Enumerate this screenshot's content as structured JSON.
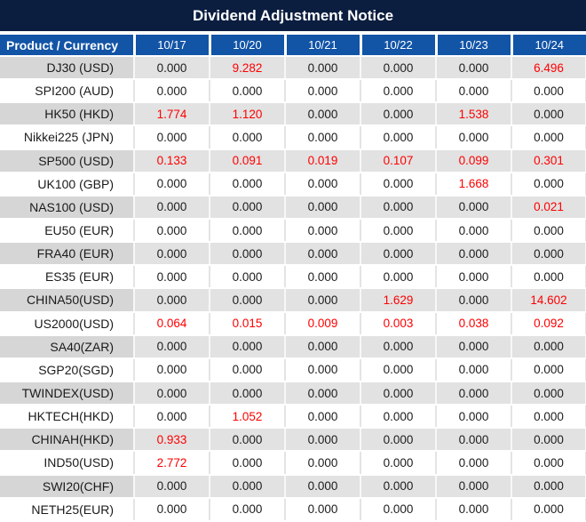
{
  "title": "Dividend Adjustment Notice",
  "colors": {
    "title_bg": "#0b1e40",
    "header_bg": "#1254a6",
    "gray_row_bg": "#e2e2e2",
    "gray_label_bg": "#d6d6d6",
    "highlight_red": "#fe0000",
    "text": "#1c1c1c"
  },
  "table": {
    "header": {
      "product_label": "Product / Currency",
      "dates": [
        "10/17",
        "10/20",
        "10/21",
        "10/22",
        "10/23",
        "10/24"
      ]
    },
    "rows": [
      {
        "product": "DJ30 (USD)",
        "values": [
          "0.000",
          "9.282",
          "0.000",
          "0.000",
          "0.000",
          "6.496"
        ]
      },
      {
        "product": "SPI200 (AUD)",
        "values": [
          "0.000",
          "0.000",
          "0.000",
          "0.000",
          "0.000",
          "0.000"
        ]
      },
      {
        "product": "HK50 (HKD)",
        "values": [
          "1.774",
          "1.120",
          "0.000",
          "0.000",
          "1.538",
          "0.000"
        ]
      },
      {
        "product": "Nikkei225 (JPN)",
        "values": [
          "0.000",
          "0.000",
          "0.000",
          "0.000",
          "0.000",
          "0.000"
        ]
      },
      {
        "product": "SP500 (USD)",
        "values": [
          "0.133",
          "0.091",
          "0.019",
          "0.107",
          "0.099",
          "0.301"
        ]
      },
      {
        "product": "UK100 (GBP)",
        "values": [
          "0.000",
          "0.000",
          "0.000",
          "0.000",
          "1.668",
          "0.000"
        ]
      },
      {
        "product": "NAS100 (USD)",
        "values": [
          "0.000",
          "0.000",
          "0.000",
          "0.000",
          "0.000",
          "0.021"
        ]
      },
      {
        "product": "EU50 (EUR)",
        "values": [
          "0.000",
          "0.000",
          "0.000",
          "0.000",
          "0.000",
          "0.000"
        ]
      },
      {
        "product": "FRA40 (EUR)",
        "values": [
          "0.000",
          "0.000",
          "0.000",
          "0.000",
          "0.000",
          "0.000"
        ]
      },
      {
        "product": "ES35 (EUR)",
        "values": [
          "0.000",
          "0.000",
          "0.000",
          "0.000",
          "0.000",
          "0.000"
        ]
      },
      {
        "product": "CHINA50(USD)",
        "values": [
          "0.000",
          "0.000",
          "0.000",
          "1.629",
          "0.000",
          "14.602"
        ]
      },
      {
        "product": "US2000(USD)",
        "values": [
          "0.064",
          "0.015",
          "0.009",
          "0.003",
          "0.038",
          "0.092"
        ]
      },
      {
        "product": "SA40(ZAR)",
        "values": [
          "0.000",
          "0.000",
          "0.000",
          "0.000",
          "0.000",
          "0.000"
        ]
      },
      {
        "product": "SGP20(SGD)",
        "values": [
          "0.000",
          "0.000",
          "0.000",
          "0.000",
          "0.000",
          "0.000"
        ]
      },
      {
        "product": "TWINDEX(USD)",
        "values": [
          "0.000",
          "0.000",
          "0.000",
          "0.000",
          "0.000",
          "0.000"
        ]
      },
      {
        "product": "HKTECH(HKD)",
        "values": [
          "0.000",
          "1.052",
          "0.000",
          "0.000",
          "0.000",
          "0.000"
        ]
      },
      {
        "product": "CHINAH(HKD)",
        "values": [
          "0.933",
          "0.000",
          "0.000",
          "0.000",
          "0.000",
          "0.000"
        ]
      },
      {
        "product": "IND50(USD)",
        "values": [
          "2.772",
          "0.000",
          "0.000",
          "0.000",
          "0.000",
          "0.000"
        ]
      },
      {
        "product": "SWI20(CHF)",
        "values": [
          "0.000",
          "0.000",
          "0.000",
          "0.000",
          "0.000",
          "0.000"
        ]
      },
      {
        "product": "NETH25(EUR)",
        "values": [
          "0.000",
          "0.000",
          "0.000",
          "0.000",
          "0.000",
          "0.000"
        ]
      }
    ]
  }
}
